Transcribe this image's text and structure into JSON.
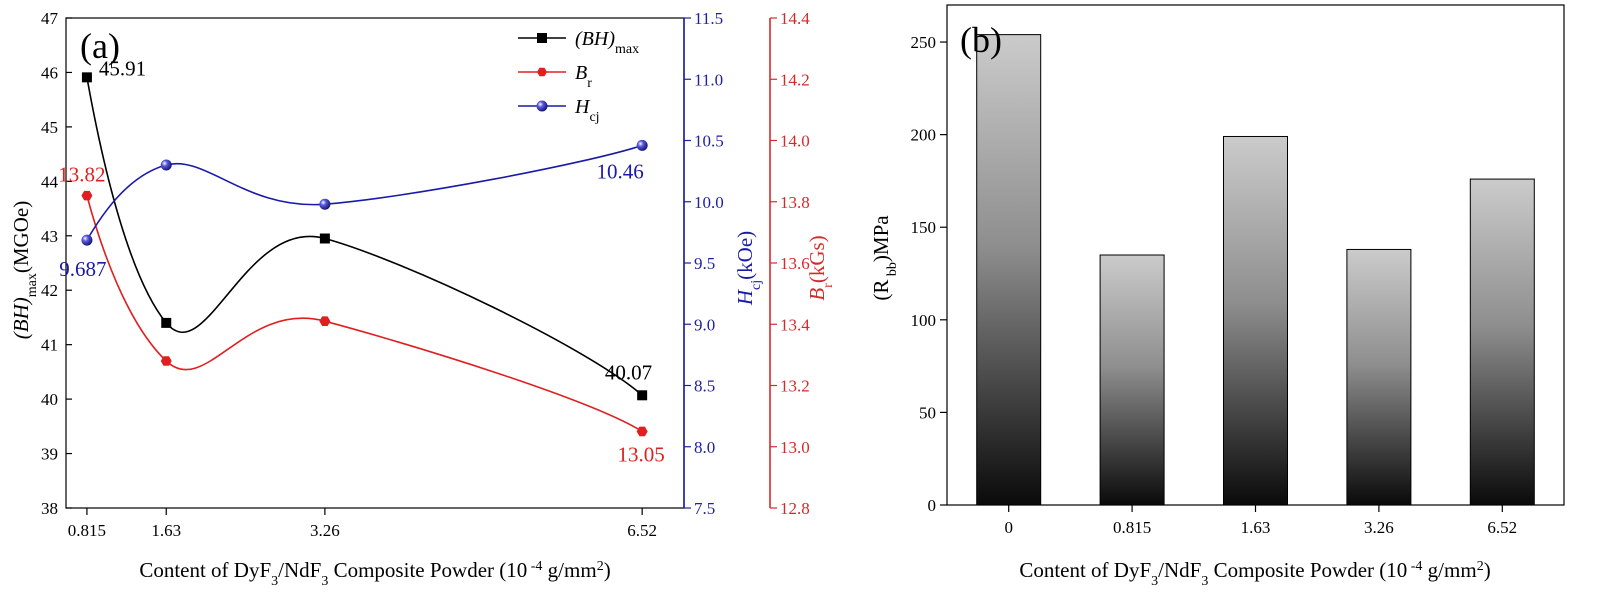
{
  "chart_data": [
    {
      "panel_label": "(a)",
      "type": "line",
      "x": [
        0.815,
        1.63,
        3.26,
        6.52
      ],
      "x_tick_labels": [
        "0.815",
        "1.63",
        "3.26",
        "6.52"
      ],
      "xlabel": {
        "pre": "Content of  DyF",
        "sub1": "3",
        "mid": "/NdF",
        "sub2": "3",
        "post": " Composite Powder (10",
        "sup": " -4",
        "end": " g/mm",
        "sup2": "2",
        "close": ")"
      },
      "axes": {
        "left": {
          "label_main": "(BH)",
          "label_sub": "max",
          "label_unit": "(MGOe)",
          "range": [
            38,
            47
          ],
          "ticks": [
            38,
            39,
            40,
            41,
            42,
            43,
            44,
            45,
            46,
            47
          ],
          "color": "#000000"
        },
        "right1": {
          "label_main": "H",
          "label_sub": "cj",
          "label_unit": "(kOe)",
          "range": [
            7.5,
            11.5
          ],
          "ticks": [
            7.5,
            8.0,
            8.5,
            9.0,
            9.5,
            10.0,
            10.5,
            11.0,
            11.5
          ],
          "color": "#1f1fa0"
        },
        "right2": {
          "label_main": "B",
          "label_sub": "r",
          "label_unit": "(kGs)",
          "range": [
            12.8,
            14.4
          ],
          "ticks": [
            12.8,
            13.0,
            13.2,
            13.4,
            13.6,
            13.8,
            14.0,
            14.2,
            14.4
          ],
          "color": "#d42a2a"
        }
      },
      "series": [
        {
          "name_main": "(BH)",
          "name_sub": "max",
          "axis": "left",
          "values": [
            45.91,
            41.4,
            42.95,
            40.07
          ],
          "color": "#000000",
          "marker": "square"
        },
        {
          "name_main": "B",
          "name_sub": "r",
          "axis": "right2",
          "values": [
            13.82,
            13.28,
            13.41,
            13.05
          ],
          "color": "#e02020",
          "marker": "hexagon"
        },
        {
          "name_main": "H",
          "name_sub": "cj",
          "axis": "right1",
          "values": [
            9.687,
            10.3,
            9.98,
            10.46
          ],
          "color": "#1a1aa8",
          "marker": "sphere"
        }
      ],
      "annotations": [
        {
          "text": "45.91",
          "color": "#000000"
        },
        {
          "text": "40.07",
          "color": "#000000"
        },
        {
          "text": "13.82",
          "color": "#e02020"
        },
        {
          "text": "13.05",
          "color": "#e02020"
        },
        {
          "text": "9.687",
          "color": "#1a1aa8"
        },
        {
          "text": "10.46",
          "color": "#1a1aa8"
        }
      ],
      "legend": "top-right",
      "grid": false
    },
    {
      "panel_label": "(b)",
      "type": "bar",
      "categories": [
        "0",
        "0.815",
        "1.63",
        "3.26",
        "6.52"
      ],
      "values": [
        254,
        135,
        199,
        138,
        176
      ],
      "ylim": [
        0,
        270
      ],
      "y_ticks": [
        0,
        50,
        100,
        150,
        200,
        250
      ],
      "ylabel": {
        "pre": "(R",
        "sub": " bb",
        "post": ")MPa"
      },
      "xlabel": {
        "pre": "Content of  DyF",
        "sub1": "3",
        "mid": "/NdF",
        "sub2": "3",
        "post": " Composite Powder (10",
        "sup": " -4",
        "end": " g/mm",
        "sup2": "2",
        "close": ")"
      },
      "bar_fill": "vertical gradient light-gray to black",
      "grid": false
    }
  ]
}
